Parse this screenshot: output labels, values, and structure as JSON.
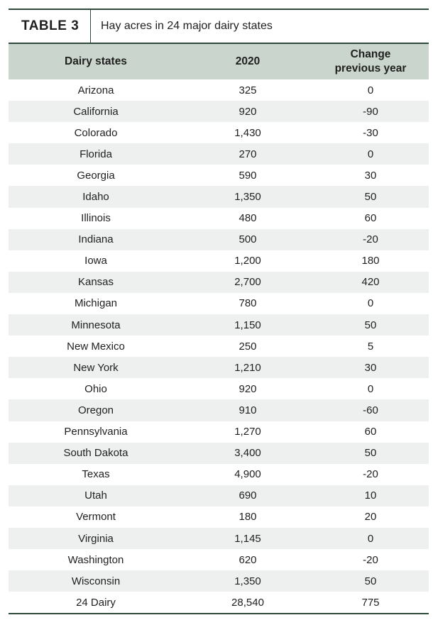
{
  "header": {
    "label": "TABLE 3",
    "title": "Hay acres in 24 major dairy states"
  },
  "table": {
    "columns": [
      "Dairy states",
      "2020",
      "Change previous year"
    ],
    "rows": [
      [
        "Arizona",
        "325",
        "0"
      ],
      [
        "California",
        "920",
        "-90"
      ],
      [
        "Colorado",
        "1,430",
        "-30"
      ],
      [
        "Florida",
        "270",
        "0"
      ],
      [
        "Georgia",
        "590",
        "30"
      ],
      [
        "Idaho",
        "1,350",
        "50"
      ],
      [
        "Illinois",
        "480",
        "60"
      ],
      [
        "Indiana",
        "500",
        "-20"
      ],
      [
        "Iowa",
        "1,200",
        "180"
      ],
      [
        "Kansas",
        "2,700",
        "420"
      ],
      [
        "Michigan",
        "780",
        "0"
      ],
      [
        "Minnesota",
        "1,150",
        "50"
      ],
      [
        "New Mexico",
        "250",
        "5"
      ],
      [
        "New York",
        "1,210",
        "30"
      ],
      [
        "Ohio",
        "920",
        "0"
      ],
      [
        "Oregon",
        "910",
        "-60"
      ],
      [
        "Pennsylvania",
        "1,270",
        "60"
      ],
      [
        "South Dakota",
        "3,400",
        "50"
      ],
      [
        "Texas",
        "4,900",
        "-20"
      ],
      [
        "Utah",
        "690",
        "10"
      ],
      [
        "Vermont",
        "180",
        "20"
      ],
      [
        "Virginia",
        "1,145",
        "0"
      ],
      [
        "Washington",
        "620",
        "-20"
      ],
      [
        "Wisconsin",
        "1,350",
        "50"
      ],
      [
        "24 Dairy",
        "28,540",
        "775"
      ]
    ]
  }
}
